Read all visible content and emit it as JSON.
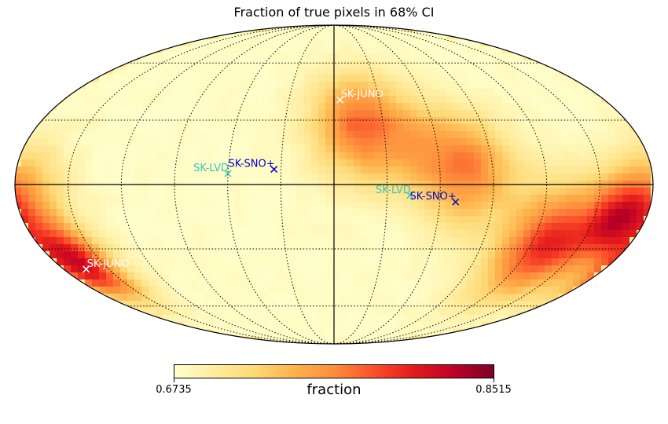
{
  "title": "Fraction of true pixels in 68% CI",
  "colorbar": {
    "min_label": "0.6735",
    "max_label": "0.8515",
    "label": "fraction",
    "min": 0.6735,
    "max": 0.8515
  },
  "colormap": [
    "#ffffcc",
    "#ffeda0",
    "#fed976",
    "#feb24c",
    "#fd8d3c",
    "#fc4e2a",
    "#e31a1c",
    "#bd0026",
    "#800026"
  ],
  "markers": [
    {
      "label": "SK-JUNO",
      "lon": -4,
      "lat": 40,
      "color": "#ffffff"
    },
    {
      "label": "SK-JUNO",
      "lon": 165,
      "lat": -40,
      "color": "#ffffff"
    },
    {
      "label": "SK-LVD",
      "lon": 60,
      "lat": 5,
      "color": "#3cc3c3"
    },
    {
      "label": "SK-LVD",
      "lon": -43,
      "lat": -5,
      "color": "#3cc3c3"
    },
    {
      "label": "SK-SNO+",
      "lon": 34,
      "lat": 7,
      "color": "#0000cc"
    },
    {
      "label": "SK-SNO+",
      "lon": -69,
      "lat": -8,
      "color": "#0000cc"
    }
  ]
}
